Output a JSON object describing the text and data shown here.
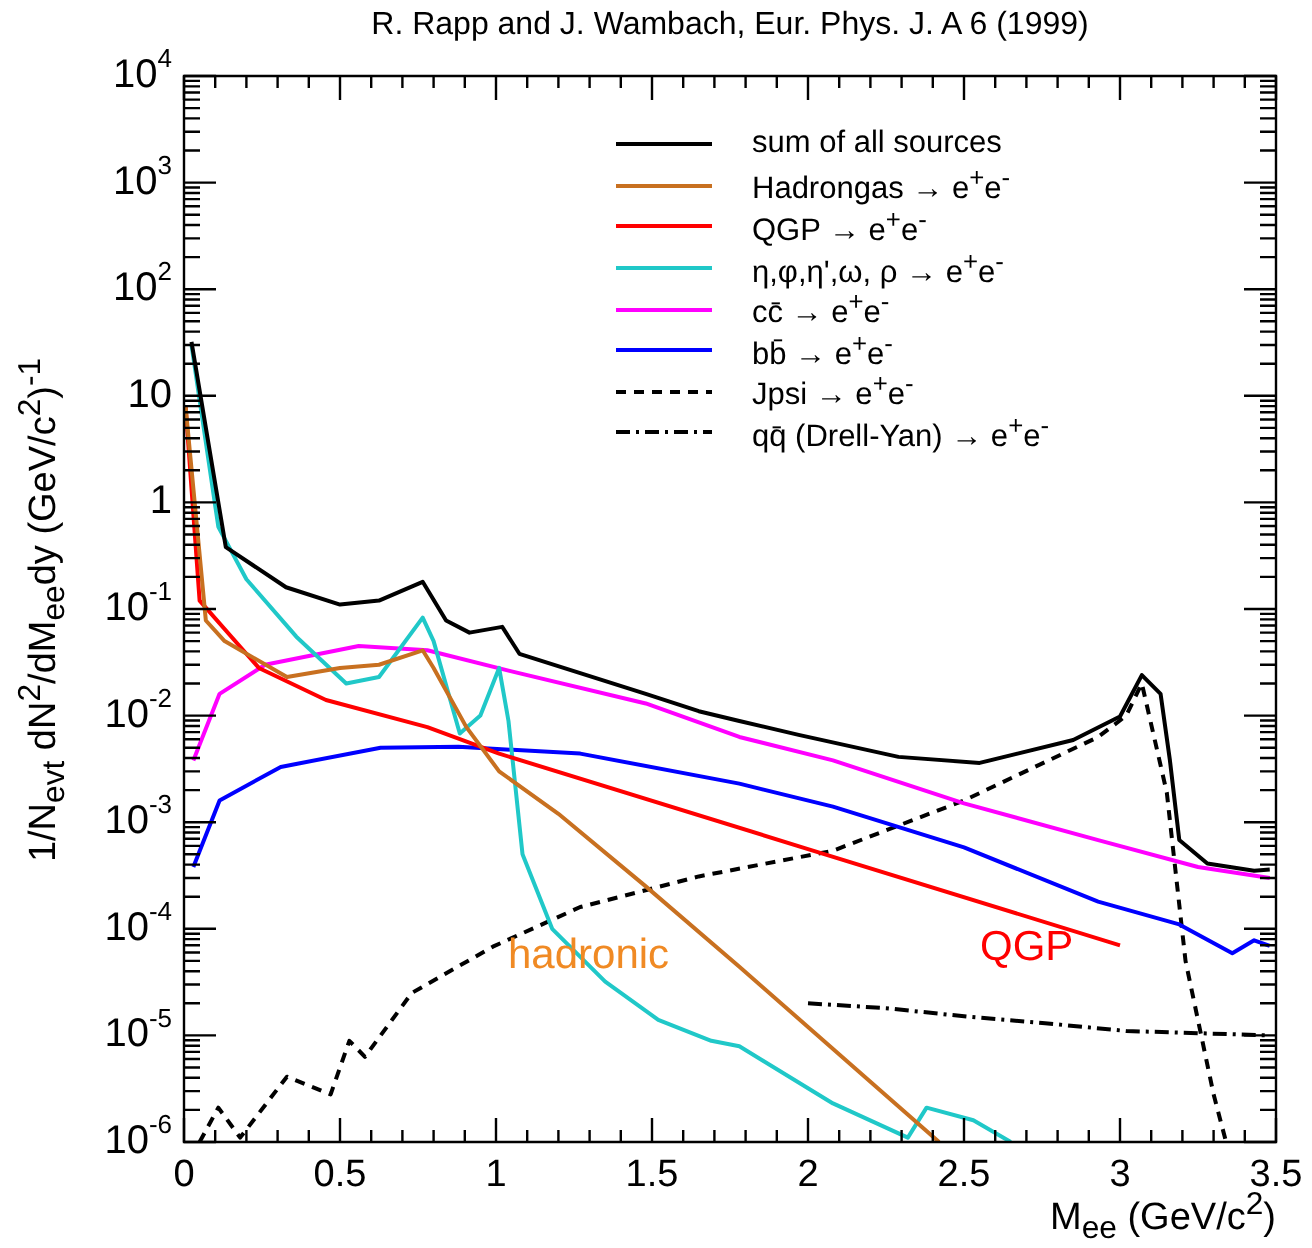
{
  "chart_data": {
    "type": "line",
    "title": "R. Rapp and J. Wambach, Eur. Phys. J. A 6 (1999)",
    "xlabel": "M$_{ee}$ (GeV/c$^{2}$)",
    "ylabel": "1/N$_{evt}$ dN$^{2}$/dM$_{ee}$dy (GeV/c$^{2}$)$^{-1}$",
    "log": "y",
    "grid": false,
    "legend": "top right",
    "marker": "none",
    "xlim": [
      0,
      3.5
    ],
    "ylim": [
      1e-06,
      10000
    ],
    "xticks": [
      0,
      {
        "value": 0.1,
        "label": null
      },
      {
        "value": 0.2,
        "label": null
      },
      {
        "value": 0.3,
        "label": null
      },
      {
        "value": 0.4,
        "label": null
      },
      0.5,
      {
        "value": 0.6,
        "label": null
      },
      {
        "value": 0.7,
        "label": null
      },
      {
        "value": 0.8,
        "label": null
      },
      {
        "value": 0.9,
        "label": null
      },
      1,
      {
        "value": 1.1,
        "label": null
      },
      {
        "value": 1.2,
        "label": null
      },
      {
        "value": 1.3,
        "label": null
      },
      {
        "value": 1.4,
        "label": null
      },
      1.5,
      {
        "value": 1.6,
        "label": null
      },
      {
        "value": 1.7,
        "label": null
      },
      {
        "value": 1.8,
        "label": null
      },
      {
        "value": 1.9,
        "label": null
      },
      2,
      {
        "value": 2.1,
        "label": null
      },
      {
        "value": 2.2,
        "label": null
      },
      {
        "value": 2.3,
        "label": null
      },
      {
        "value": 2.4,
        "label": null
      },
      2.5,
      {
        "value": 2.6,
        "label": null
      },
      {
        "value": 2.7,
        "label": null
      },
      {
        "value": 2.8,
        "label": null
      },
      {
        "value": 2.9,
        "label": null
      },
      3,
      {
        "value": 3.1,
        "label": null
      },
      {
        "value": 3.2,
        "label": null
      },
      {
        "value": 3.3,
        "label": null
      },
      {
        "value": 3.4,
        "label": null
      },
      3.5
    ],
    "yticks": [
      {
        "value": 1e-06,
        "label": "10$^{-6}$"
      },
      {
        "value": 1e-05,
        "label": "10$^{-5}$"
      },
      {
        "value": 0.0001,
        "label": "10$^{-4}$"
      },
      {
        "value": 0.001,
        "label": "10$^{-3}$"
      },
      {
        "value": 0.01,
        "label": "10$^{-2}$"
      },
      {
        "value": 0.1,
        "label": "10$^{-1}$"
      },
      1,
      10,
      {
        "value": 100,
        "label": "10$^{2}$"
      },
      {
        "value": 1000,
        "label": "10$^{3}$"
      },
      {
        "value": 10000,
        "label": "10$^{4}$"
      }
    ],
    "series": [
      {
        "name": "sum of all sources",
        "color": "#000000",
        "line_style": "solid",
        "x": [
          0.024,
          0.134,
          0.327,
          0.5,
          0.625,
          0.765,
          0.84,
          0.915,
          1.02,
          1.075,
          1.48,
          1.65,
          1.78,
          1.97,
          2.29,
          2.55,
          2.85,
          3.0,
          3.07,
          3.13,
          3.16,
          3.19,
          3.28,
          3.43,
          3.48
        ],
        "values": [
          32,
          0.38,
          0.16,
          0.11,
          0.12,
          0.18,
          0.078,
          0.06,
          0.068,
          0.038,
          0.016,
          0.011,
          0.0089,
          0.0066,
          0.0041,
          0.0036,
          0.0059,
          0.0098,
          0.024,
          0.016,
          0.0038,
          0.00068,
          0.00041,
          0.00035,
          0.00036
        ]
      },
      {
        "name": "Hadrongas → e$^{+}$e$^{-}$",
        "color": "#c87020",
        "line_style": "solid",
        "x": [
          0.005,
          0.07,
          0.13,
          0.33,
          0.5,
          0.625,
          0.765,
          0.8,
          0.905,
          1.01,
          1.2,
          1.48,
          1.78,
          2.0,
          2.42
        ],
        "values": [
          8,
          0.078,
          0.05,
          0.023,
          0.028,
          0.03,
          0.041,
          0.028,
          0.0078,
          0.003,
          0.0012,
          0.00025,
          4.4e-05,
          1.2e-05,
          1e-06
        ]
      },
      {
        "name": "QGP → e$^{+}$e$^{-}$",
        "color": "#ff0000",
        "line_style": "solid",
        "x": [
          0.005,
          0.05,
          0.24,
          0.455,
          0.78,
          1.01,
          2.0,
          3.0
        ],
        "values": [
          8,
          0.12,
          0.028,
          0.014,
          0.0078,
          0.0044,
          0.00056,
          7e-05
        ]
      },
      {
        "name": "η,φ,η',ω, ρ → e$^{+}$e$^{-}$",
        "color": "#20c8c8",
        "line_style": "solid",
        "x": [
          0.024,
          0.11,
          0.2,
          0.36,
          0.52,
          0.625,
          0.765,
          0.8,
          0.884,
          0.95,
          1.01,
          1.04,
          1.085,
          1.18,
          1.35,
          1.52,
          1.69,
          1.78,
          2.08,
          2.32,
          2.38,
          2.53,
          2.65
        ],
        "values": [
          30,
          0.59,
          0.19,
          0.055,
          0.02,
          0.023,
          0.083,
          0.05,
          0.0068,
          0.01,
          0.028,
          0.0089,
          0.0005,
          0.0001,
          3.2e-05,
          1.4e-05,
          8.9e-06,
          7.9e-06,
          2.3e-06,
          1.1e-06,
          2.1e-06,
          1.6e-06,
          1e-06
        ]
      },
      {
        "name": "cc̄ → e$^{+}$e$^{-}$",
        "color": "#ff00ff",
        "line_style": "solid",
        "x": [
          0.03,
          0.114,
          0.26,
          0.56,
          0.78,
          1.05,
          1.48,
          1.78,
          2.08,
          2.5,
          2.93,
          3.25,
          3.48
        ],
        "values": [
          0.0038,
          0.016,
          0.03,
          0.045,
          0.041,
          0.026,
          0.013,
          0.0063,
          0.0038,
          0.0015,
          0.00068,
          0.00038,
          0.0003
        ]
      },
      {
        "name": "bb̄ → e$^{+}$e$^{-}$",
        "color": "#0000ff",
        "line_style": "solid",
        "x": [
          0.03,
          0.114,
          0.31,
          0.63,
          0.88,
          1.27,
          1.78,
          2.08,
          2.5,
          2.93,
          3.19,
          3.36,
          3.43,
          3.48
        ],
        "values": [
          0.00038,
          0.0016,
          0.0033,
          0.005,
          0.0051,
          0.0044,
          0.0023,
          0.0014,
          0.00058,
          0.00018,
          0.00011,
          5.9e-05,
          7.8e-05,
          6.9e-05
        ]
      },
      {
        "name": "Jpsi → e$^{+}$e$^{-}$",
        "color": "#000000",
        "line_style": "dashed",
        "x": [
          0.05,
          0.11,
          0.18,
          0.33,
          0.47,
          0.53,
          0.58,
          0.73,
          0.99,
          1.27,
          1.65,
          2.08,
          2.5,
          2.93,
          3.02,
          3.07,
          3.15,
          3.21,
          3.3,
          3.34
        ],
        "values": [
          1e-06,
          2.1e-06,
          1.1e-06,
          4.1e-06,
          2.8e-06,
          8.9e-06,
          6.3e-06,
          2.5e-05,
          6.8e-05,
          0.00016,
          0.00031,
          0.00054,
          0.0016,
          0.0063,
          0.01,
          0.02,
          0.0019,
          5e-05,
          2.8e-06,
          1e-06
        ]
      },
      {
        "name": "qq̄ (Drell-Yan) → e$^{+}$e$^{-}$",
        "color": "#000000",
        "line_style": "dashdot",
        "x": [
          2.0,
          2.25,
          2.51,
          2.76,
          3.02,
          3.48
        ],
        "values": [
          2e-05,
          1.8e-05,
          1.5e-05,
          1.3e-05,
          1.1e-05,
          1e-05
        ]
      }
    ],
    "annotations": [
      "hadronic",
      "QGP"
    ]
  }
}
